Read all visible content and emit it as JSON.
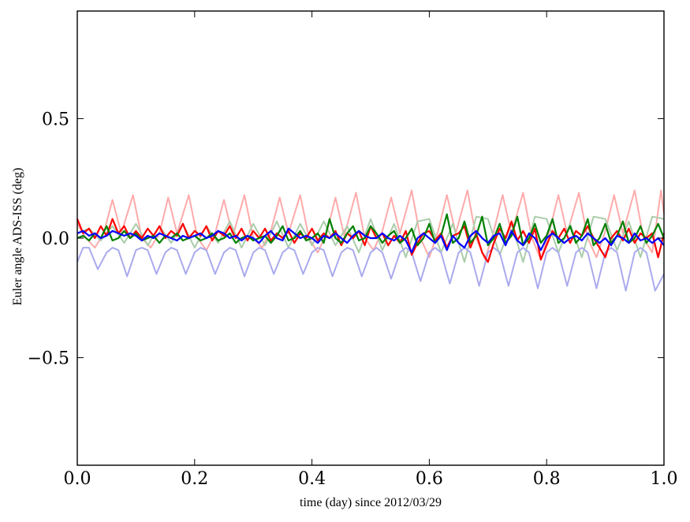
{
  "chart_data": {
    "type": "line",
    "xlabel": "time (day) since 2012/03/29",
    "ylabel": "Euler angle ADS-ISS (deg)",
    "xlim": [
      0.0,
      1.0
    ],
    "ylim": [
      -0.95,
      0.95
    ],
    "xticks": [
      "0.0",
      "0.2",
      "0.4",
      "0.6",
      "0.8",
      "1.0"
    ],
    "xtick_values": [
      0.0,
      0.2,
      0.4,
      0.6,
      0.8,
      1.0
    ],
    "yticks": [
      "0.5",
      "0.0",
      "−0.5"
    ],
    "ytick_values": [
      0.5,
      0.0,
      -0.5
    ],
    "grid": false,
    "legend": "none",
    "series": [
      {
        "color": "#ffaaaa",
        "opacity": 1.0,
        "width": 2,
        "x": [
          0.0,
          0.015,
          0.03,
          0.045,
          0.06,
          0.075,
          0.095,
          0.11,
          0.125,
          0.14,
          0.155,
          0.17,
          0.19,
          0.205,
          0.22,
          0.235,
          0.25,
          0.265,
          0.285,
          0.3,
          0.315,
          0.33,
          0.345,
          0.36,
          0.38,
          0.395,
          0.41,
          0.425,
          0.44,
          0.455,
          0.475,
          0.49,
          0.505,
          0.52,
          0.535,
          0.55,
          0.57,
          0.585,
          0.6,
          0.615,
          0.63,
          0.645,
          0.665,
          0.68,
          0.695,
          0.71,
          0.725,
          0.74,
          0.76,
          0.775,
          0.79,
          0.805,
          0.82,
          0.835,
          0.855,
          0.87,
          0.885,
          0.9,
          0.915,
          0.93,
          0.95,
          0.965,
          0.98,
          0.995,
          1.0
        ],
        "y": [
          0.06,
          0.0,
          -0.04,
          0.02,
          0.16,
          0.02,
          0.18,
          0.0,
          -0.04,
          0.02,
          0.17,
          0.02,
          0.18,
          0.0,
          -0.05,
          0.02,
          0.16,
          0.01,
          0.18,
          0.0,
          -0.04,
          0.03,
          0.17,
          0.02,
          0.18,
          0.0,
          -0.06,
          0.02,
          0.17,
          0.01,
          0.19,
          0.0,
          -0.05,
          0.03,
          0.17,
          0.02,
          0.2,
          0.0,
          -0.08,
          0.03,
          0.18,
          0.02,
          0.2,
          0.0,
          -0.09,
          0.03,
          0.18,
          0.02,
          0.19,
          0.0,
          -0.09,
          0.03,
          0.18,
          0.02,
          0.19,
          0.0,
          -0.08,
          0.03,
          0.18,
          0.02,
          0.2,
          0.0,
          -0.06,
          0.2,
          0.1
        ]
      },
      {
        "color": "#aaccaa",
        "opacity": 1.0,
        "width": 2,
        "x": [
          0.0,
          0.02,
          0.04,
          0.06,
          0.08,
          0.1,
          0.12,
          0.14,
          0.16,
          0.18,
          0.2,
          0.22,
          0.24,
          0.26,
          0.28,
          0.3,
          0.32,
          0.34,
          0.36,
          0.38,
          0.4,
          0.42,
          0.44,
          0.46,
          0.48,
          0.5,
          0.52,
          0.54,
          0.56,
          0.58,
          0.6,
          0.62,
          0.64,
          0.66,
          0.68,
          0.7,
          0.72,
          0.74,
          0.76,
          0.78,
          0.8,
          0.82,
          0.84,
          0.86,
          0.88,
          0.9,
          0.92,
          0.94,
          0.96,
          0.98,
          1.0
        ],
        "y": [
          0.02,
          0.04,
          -0.01,
          0.05,
          -0.02,
          0.06,
          -0.03,
          0.05,
          -0.02,
          0.06,
          -0.04,
          0.05,
          -0.02,
          0.07,
          -0.04,
          0.06,
          -0.03,
          0.07,
          -0.04,
          0.06,
          -0.03,
          0.07,
          -0.03,
          0.05,
          -0.06,
          0.08,
          -0.05,
          0.06,
          -0.08,
          0.07,
          0.08,
          -0.06,
          0.06,
          -0.1,
          0.09,
          0.08,
          -0.07,
          0.06,
          -0.1,
          0.09,
          0.08,
          -0.06,
          0.06,
          -0.08,
          0.09,
          0.08,
          -0.05,
          0.07,
          -0.08,
          0.09,
          0.08
        ]
      },
      {
        "color": "#aaaaee",
        "opacity": 1.0,
        "width": 2,
        "x": [
          0.0,
          0.01,
          0.02,
          0.035,
          0.05,
          0.06,
          0.07,
          0.085,
          0.1,
          0.11,
          0.12,
          0.135,
          0.15,
          0.16,
          0.17,
          0.185,
          0.2,
          0.21,
          0.22,
          0.235,
          0.25,
          0.26,
          0.27,
          0.285,
          0.3,
          0.31,
          0.32,
          0.335,
          0.35,
          0.36,
          0.37,
          0.385,
          0.4,
          0.41,
          0.42,
          0.435,
          0.45,
          0.46,
          0.47,
          0.485,
          0.5,
          0.51,
          0.52,
          0.535,
          0.55,
          0.56,
          0.57,
          0.585,
          0.6,
          0.61,
          0.62,
          0.635,
          0.65,
          0.66,
          0.67,
          0.685,
          0.7,
          0.71,
          0.72,
          0.735,
          0.75,
          0.76,
          0.77,
          0.785,
          0.8,
          0.81,
          0.82,
          0.835,
          0.85,
          0.86,
          0.87,
          0.885,
          0.9,
          0.91,
          0.92,
          0.935,
          0.95,
          0.96,
          0.97,
          0.985,
          1.0
        ],
        "y": [
          -0.1,
          -0.04,
          -0.04,
          -0.13,
          -0.06,
          -0.04,
          -0.05,
          -0.16,
          -0.05,
          -0.04,
          -0.05,
          -0.15,
          -0.06,
          -0.04,
          -0.05,
          -0.15,
          -0.06,
          -0.04,
          -0.05,
          -0.15,
          -0.06,
          -0.04,
          -0.05,
          -0.16,
          -0.06,
          -0.04,
          -0.05,
          -0.15,
          -0.06,
          -0.04,
          -0.05,
          -0.15,
          -0.06,
          -0.04,
          -0.05,
          -0.16,
          -0.06,
          -0.04,
          -0.05,
          -0.16,
          -0.06,
          -0.04,
          -0.06,
          -0.17,
          -0.06,
          -0.04,
          -0.06,
          -0.18,
          -0.06,
          -0.04,
          -0.06,
          -0.19,
          -0.06,
          -0.04,
          -0.06,
          -0.2,
          -0.06,
          -0.04,
          -0.06,
          -0.2,
          -0.06,
          -0.04,
          -0.06,
          -0.21,
          -0.06,
          -0.04,
          -0.06,
          -0.2,
          -0.06,
          -0.04,
          -0.06,
          -0.21,
          -0.06,
          -0.04,
          -0.06,
          -0.22,
          -0.06,
          -0.04,
          -0.06,
          -0.22,
          -0.15
        ]
      },
      {
        "color": "#ff0000",
        "opacity": 1.0,
        "width": 2.2,
        "x": [
          0.0,
          0.01,
          0.02,
          0.03,
          0.04,
          0.05,
          0.06,
          0.07,
          0.08,
          0.09,
          0.1,
          0.11,
          0.12,
          0.13,
          0.14,
          0.15,
          0.16,
          0.17,
          0.18,
          0.19,
          0.2,
          0.21,
          0.22,
          0.23,
          0.24,
          0.25,
          0.26,
          0.27,
          0.28,
          0.29,
          0.3,
          0.31,
          0.32,
          0.33,
          0.34,
          0.35,
          0.36,
          0.37,
          0.38,
          0.39,
          0.4,
          0.41,
          0.42,
          0.43,
          0.44,
          0.45,
          0.46,
          0.47,
          0.48,
          0.49,
          0.5,
          0.51,
          0.52,
          0.53,
          0.54,
          0.55,
          0.56,
          0.57,
          0.58,
          0.59,
          0.6,
          0.61,
          0.62,
          0.63,
          0.64,
          0.65,
          0.66,
          0.67,
          0.68,
          0.69,
          0.7,
          0.71,
          0.72,
          0.73,
          0.74,
          0.75,
          0.76,
          0.77,
          0.78,
          0.79,
          0.8,
          0.81,
          0.82,
          0.83,
          0.84,
          0.85,
          0.86,
          0.87,
          0.88,
          0.89,
          0.9,
          0.91,
          0.92,
          0.93,
          0.94,
          0.95,
          0.96,
          0.97,
          0.98,
          0.99,
          1.0
        ],
        "y": [
          0.08,
          0.02,
          0.04,
          0.0,
          0.05,
          0.01,
          0.08,
          0.02,
          0.05,
          0.0,
          0.03,
          0.0,
          0.04,
          0.01,
          0.05,
          0.0,
          0.03,
          0.01,
          0.06,
          0.0,
          0.03,
          0.01,
          0.05,
          -0.01,
          0.03,
          0.01,
          0.05,
          0.0,
          0.04,
          -0.01,
          0.03,
          0.0,
          0.04,
          -0.01,
          0.02,
          0.0,
          0.03,
          -0.02,
          0.02,
          0.0,
          0.04,
          -0.01,
          0.02,
          0.0,
          0.03,
          -0.03,
          0.02,
          0.0,
          0.03,
          -0.03,
          0.05,
          0.0,
          0.02,
          -0.03,
          0.01,
          -0.02,
          0.03,
          -0.07,
          -0.02,
          0.02,
          0.03,
          -0.01,
          0.02,
          -0.04,
          0.01,
          0.02,
          0.05,
          -0.04,
          0.02,
          -0.06,
          -0.1,
          -0.02,
          0.04,
          0.0,
          0.07,
          -0.01,
          0.03,
          -0.02,
          0.04,
          -0.09,
          -0.03,
          0.03,
          0.0,
          0.04,
          -0.02,
          0.03,
          0.01,
          0.05,
          0.0,
          -0.04,
          -0.08,
          0.0,
          0.03,
          -0.01,
          0.04,
          -0.02,
          0.02,
          0.0,
          0.02,
          -0.08,
          0.02
        ]
      },
      {
        "color": "#008000",
        "opacity": 1.0,
        "width": 2.2,
        "x": [
          0.0,
          0.01,
          0.02,
          0.03,
          0.04,
          0.05,
          0.06,
          0.07,
          0.08,
          0.09,
          0.1,
          0.11,
          0.12,
          0.13,
          0.14,
          0.15,
          0.16,
          0.17,
          0.18,
          0.19,
          0.2,
          0.21,
          0.22,
          0.23,
          0.24,
          0.25,
          0.26,
          0.27,
          0.28,
          0.29,
          0.3,
          0.31,
          0.32,
          0.33,
          0.34,
          0.35,
          0.36,
          0.37,
          0.38,
          0.39,
          0.4,
          0.41,
          0.42,
          0.43,
          0.44,
          0.45,
          0.46,
          0.47,
          0.48,
          0.49,
          0.5,
          0.51,
          0.52,
          0.53,
          0.54,
          0.55,
          0.56,
          0.57,
          0.58,
          0.59,
          0.6,
          0.61,
          0.62,
          0.63,
          0.64,
          0.65,
          0.66,
          0.67,
          0.68,
          0.69,
          0.7,
          0.71,
          0.72,
          0.73,
          0.74,
          0.75,
          0.76,
          0.77,
          0.78,
          0.79,
          0.8,
          0.81,
          0.82,
          0.83,
          0.84,
          0.85,
          0.86,
          0.87,
          0.88,
          0.89,
          0.9,
          0.91,
          0.92,
          0.93,
          0.94,
          0.95,
          0.96,
          0.97,
          0.98,
          0.99,
          1.0
        ],
        "y": [
          0.0,
          0.01,
          -0.01,
          0.02,
          0.0,
          0.05,
          -0.01,
          0.0,
          0.03,
          0.0,
          0.02,
          -0.01,
          0.0,
          0.01,
          -0.02,
          0.01,
          0.0,
          0.02,
          -0.01,
          0.0,
          0.01,
          -0.01,
          0.0,
          0.02,
          -0.01,
          0.0,
          0.02,
          -0.02,
          0.0,
          0.01,
          -0.01,
          0.0,
          0.01,
          -0.02,
          0.01,
          0.05,
          -0.01,
          0.0,
          0.03,
          -0.01,
          0.0,
          0.02,
          -0.02,
          0.08,
          0.0,
          -0.02,
          0.02,
          0.05,
          -0.01,
          0.0,
          0.05,
          0.02,
          -0.02,
          0.01,
          0.03,
          -0.02,
          0.0,
          0.04,
          -0.03,
          0.0,
          0.06,
          -0.02,
          0.01,
          0.1,
          -0.02,
          0.0,
          0.07,
          -0.02,
          0.01,
          0.09,
          -0.03,
          0.0,
          0.06,
          -0.02,
          0.01,
          0.09,
          -0.03,
          0.0,
          0.06,
          -0.02,
          0.01,
          0.08,
          -0.02,
          0.0,
          0.05,
          -0.02,
          0.01,
          0.08,
          -0.03,
          0.0,
          0.06,
          -0.02,
          0.01,
          0.07,
          -0.02,
          0.0,
          0.05,
          -0.02,
          0.01,
          0.06,
          0.0
        ]
      },
      {
        "color": "#0000ff",
        "opacity": 1.0,
        "width": 2.2,
        "x": [
          0.0,
          0.01,
          0.02,
          0.03,
          0.04,
          0.05,
          0.06,
          0.07,
          0.08,
          0.09,
          0.1,
          0.11,
          0.12,
          0.13,
          0.14,
          0.15,
          0.16,
          0.17,
          0.18,
          0.19,
          0.2,
          0.21,
          0.22,
          0.23,
          0.24,
          0.25,
          0.26,
          0.27,
          0.28,
          0.29,
          0.3,
          0.31,
          0.32,
          0.33,
          0.34,
          0.35,
          0.36,
          0.37,
          0.38,
          0.39,
          0.4,
          0.41,
          0.42,
          0.43,
          0.44,
          0.45,
          0.46,
          0.47,
          0.48,
          0.49,
          0.5,
          0.51,
          0.52,
          0.53,
          0.54,
          0.55,
          0.56,
          0.57,
          0.58,
          0.59,
          0.6,
          0.61,
          0.62,
          0.63,
          0.64,
          0.65,
          0.66,
          0.67,
          0.68,
          0.69,
          0.7,
          0.71,
          0.72,
          0.73,
          0.74,
          0.75,
          0.76,
          0.77,
          0.78,
          0.79,
          0.8,
          0.81,
          0.82,
          0.83,
          0.84,
          0.85,
          0.86,
          0.87,
          0.88,
          0.89,
          0.9,
          0.91,
          0.92,
          0.93,
          0.94,
          0.95,
          0.96,
          0.97,
          0.98,
          0.99,
          1.0
        ],
        "y": [
          0.02,
          0.03,
          0.01,
          0.02,
          0.0,
          0.01,
          0.03,
          0.02,
          0.01,
          0.02,
          0.01,
          -0.01,
          0.01,
          0.0,
          0.02,
          0.01,
          0.0,
          -0.01,
          0.01,
          0.0,
          0.01,
          0.02,
          0.0,
          0.01,
          0.03,
          0.02,
          0.0,
          0.01,
          -0.01,
          0.01,
          0.0,
          -0.02,
          0.01,
          0.03,
          0.0,
          -0.01,
          0.04,
          0.02,
          0.0,
          0.01,
          0.0,
          -0.02,
          0.01,
          0.0,
          0.02,
          0.0,
          -0.02,
          0.01,
          0.03,
          0.01,
          0.0,
          0.0,
          0.02,
          0.0,
          -0.01,
          0.01,
          -0.01,
          -0.06,
          0.0,
          0.02,
          0.0,
          -0.02,
          0.01,
          -0.05,
          0.01,
          -0.02,
          -0.04,
          0.01,
          0.03,
          0.0,
          -0.02,
          0.01,
          0.02,
          -0.03,
          0.03,
          -0.01,
          -0.03,
          0.02,
          0.0,
          -0.05,
          0.0,
          0.02,
          0.0,
          -0.02,
          0.0,
          0.01,
          -0.01,
          0.02,
          0.0,
          -0.02,
          0.0,
          -0.03,
          0.01,
          0.0,
          -0.02,
          0.02,
          -0.01,
          0.0,
          -0.02,
          0.0,
          -0.03
        ]
      }
    ]
  }
}
